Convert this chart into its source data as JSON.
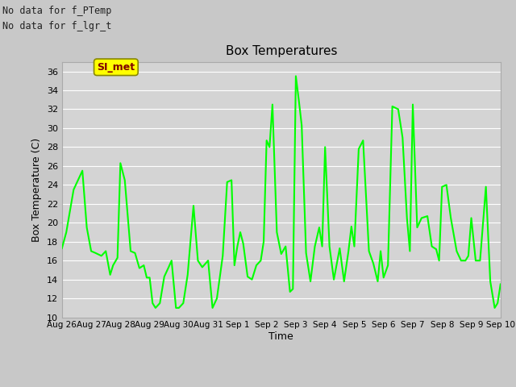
{
  "title": "Box Temperatures",
  "ylabel": "Box Temperature (C)",
  "xlabel": "Time",
  "no_data_text": [
    "No data for f_PTemp",
    "No data for f_lgr_t"
  ],
  "legend_line_color": "#00ff00",
  "line_color": "#00ff00",
  "line_width": 1.5,
  "fig_bg_color": "#c8c8c8",
  "plot_bg_color": "#d4d4d4",
  "grid_color": "#ffffff",
  "ylim": [
    10,
    37
  ],
  "yticks": [
    10,
    12,
    14,
    16,
    18,
    20,
    22,
    24,
    26,
    28,
    30,
    32,
    34,
    36
  ],
  "xtick_labels": [
    "Aug 26",
    "Aug 27",
    "Aug 28",
    "Aug 29",
    "Aug 30",
    "Aug 31",
    "Sep 1",
    "Sep 2",
    "Sep 3",
    "Sep 4",
    "Sep 5",
    "Sep 6",
    "Sep 7",
    "Sep 8",
    "Sep 9",
    "Sep 10"
  ],
  "si_met_label": "SI_met",
  "si_met_bg": "#ffff00",
  "si_met_text_color": "#800000",
  "x_points": [
    0,
    0.15,
    0.4,
    0.7,
    0.85,
    1.0,
    1.15,
    1.35,
    1.5,
    1.65,
    1.75,
    1.9,
    2.0,
    2.15,
    2.35,
    2.5,
    2.65,
    2.8,
    2.9,
    3.0,
    3.1,
    3.2,
    3.35,
    3.5,
    3.65,
    3.75,
    3.9,
    4.0,
    4.15,
    4.3,
    4.5,
    4.65,
    4.8,
    5.0,
    5.15,
    5.3,
    5.5,
    5.65,
    5.8,
    5.9,
    6.0,
    6.1,
    6.2,
    6.35,
    6.5,
    6.65,
    6.8,
    6.9,
    7.0,
    7.1,
    7.2,
    7.35,
    7.5,
    7.65,
    7.8,
    7.9,
    8.0,
    8.1,
    8.2,
    8.35,
    8.5,
    8.65,
    8.8,
    8.9,
    9.0,
    9.15,
    9.3,
    9.5,
    9.65,
    9.8,
    9.9,
    10.0,
    10.15,
    10.3,
    10.5,
    10.65,
    10.8,
    10.9,
    11.0,
    11.15,
    11.3,
    11.5,
    11.65,
    11.8,
    11.9,
    12.0,
    12.15,
    12.3,
    12.5,
    12.65,
    12.8,
    12.9,
    13.0,
    13.15,
    13.3,
    13.5,
    13.65,
    13.8,
    13.9,
    14.0,
    14.15,
    14.3,
    14.5,
    14.65,
    14.8,
    14.9,
    15.0
  ],
  "y_points": [
    17.3,
    19.0,
    23.5,
    25.5,
    19.5,
    17.0,
    16.8,
    16.5,
    17.0,
    14.5,
    15.5,
    16.3,
    26.3,
    24.5,
    17.0,
    16.8,
    15.2,
    15.5,
    14.2,
    14.2,
    11.5,
    11.0,
    11.5,
    14.3,
    15.3,
    16.0,
    11.0,
    11.0,
    11.5,
    14.5,
    21.8,
    16.0,
    15.3,
    16.0,
    11.0,
    12.0,
    16.5,
    24.3,
    24.5,
    15.5,
    17.5,
    19.0,
    17.8,
    14.3,
    14.0,
    15.5,
    16.0,
    18.0,
    28.7,
    28.0,
    32.5,
    19.0,
    16.7,
    17.5,
    12.7,
    13.0,
    35.5,
    33.0,
    30.3,
    16.8,
    13.8,
    17.5,
    19.5,
    17.5,
    28.0,
    17.5,
    14.0,
    17.3,
    13.8,
    17.0,
    19.6,
    17.5,
    27.8,
    28.7,
    17.0,
    15.7,
    13.8,
    17.0,
    14.2,
    15.5,
    32.3,
    32.0,
    29.0,
    20.5,
    17.0,
    32.5,
    19.5,
    20.5,
    20.7,
    17.5,
    17.2,
    16.0,
    23.8,
    24.0,
    20.5,
    17.0,
    16.0,
    16.0,
    16.5,
    20.5,
    16.0,
    16.0,
    23.8,
    13.8,
    11.0,
    11.5,
    13.5
  ]
}
